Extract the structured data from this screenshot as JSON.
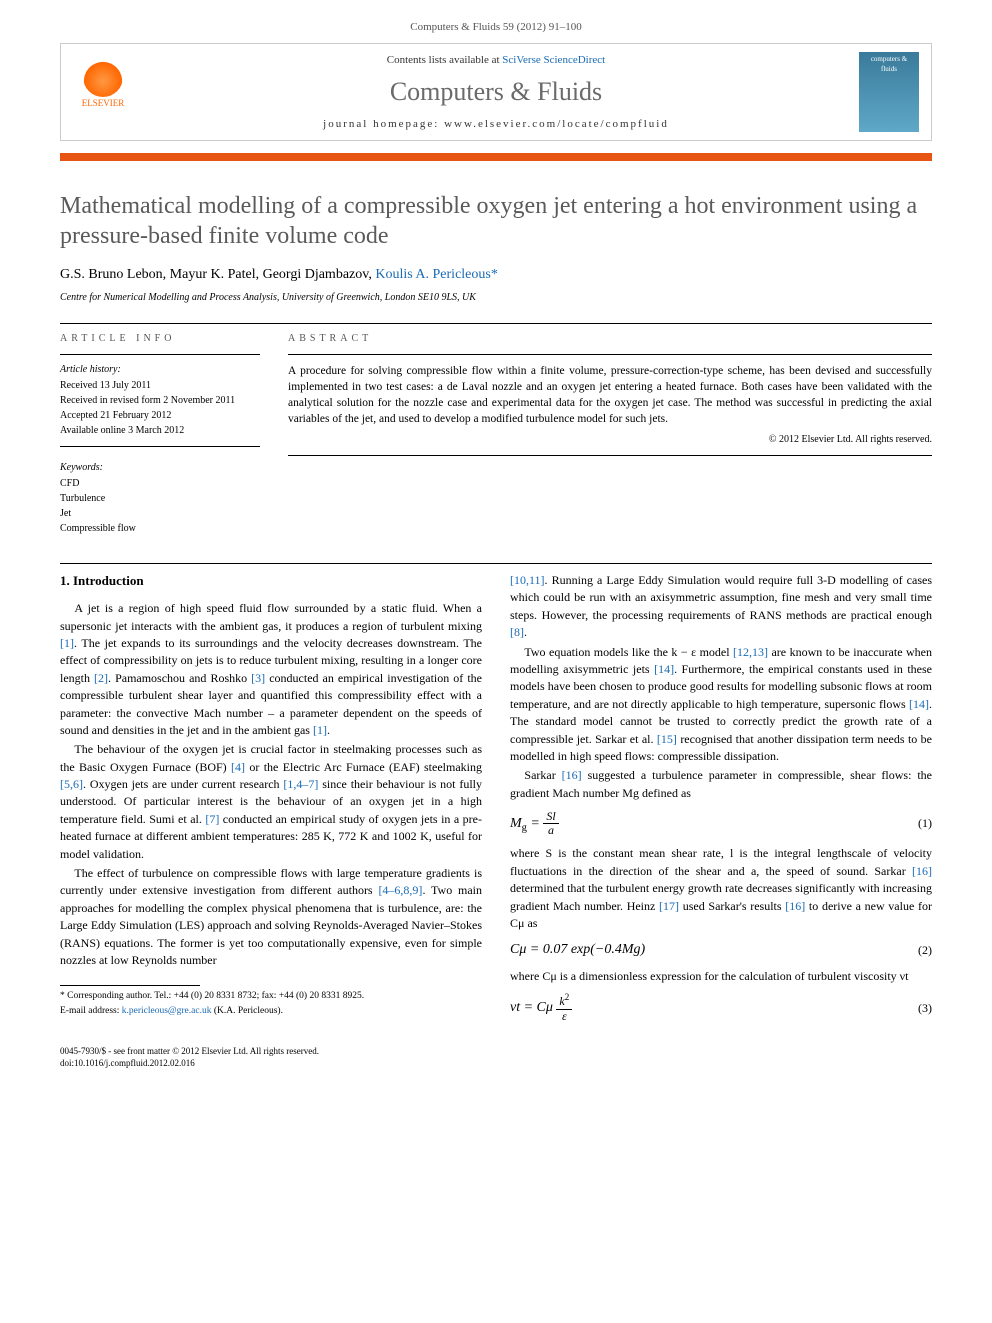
{
  "header": {
    "journal_ref": "Computers & Fluids 59 (2012) 91–100",
    "contents_prefix": "Contents lists available at ",
    "contents_link": "SciVerse ScienceDirect",
    "journal_title": "Computers & Fluids",
    "homepage": "journal homepage: www.elsevier.com/locate/compfluid",
    "publisher": "ELSEVIER",
    "cover_text": "computers & fluids"
  },
  "article": {
    "title": "Mathematical modelling of a compressible oxygen jet entering a hot environment using a pressure-based finite volume code",
    "authors_plain": "G.S. Bruno Lebon, Mayur K. Patel, Georgi Djambazov, ",
    "author_corr": "Koulis A. Pericleous",
    "corr_marker": "*",
    "affiliation": "Centre for Numerical Modelling and Process Analysis, University of Greenwich, London SE10 9LS, UK"
  },
  "labels": {
    "article_info": "ARTICLE INFO",
    "abstract": "ABSTRACT",
    "history": "Article history:",
    "keywords": "Keywords:"
  },
  "history": {
    "received": "Received 13 July 2011",
    "revised": "Received in revised form 2 November 2011",
    "accepted": "Accepted 21 February 2012",
    "online": "Available online 3 March 2012"
  },
  "keywords": [
    "CFD",
    "Turbulence",
    "Jet",
    "Compressible flow"
  ],
  "abstract": {
    "text": "A procedure for solving compressible flow within a finite volume, pressure-correction-type scheme, has been devised and successfully implemented in two test cases: a de Laval nozzle and an oxygen jet entering a heated furnace. Both cases have been validated with the analytical solution for the nozzle case and experimental data for the oxygen jet case. The method was successful in predicting the axial variables of the jet, and used to develop a modified turbulence model for such jets.",
    "copyright": "© 2012 Elsevier Ltd. All rights reserved."
  },
  "sections": {
    "intro_heading": "1. Introduction"
  },
  "body": {
    "left": [
      "A jet is a region of high speed fluid flow surrounded by a static fluid. When a supersonic jet interacts with the ambient gas, it produces a region of turbulent mixing [1]. The jet expands to its surroundings and the velocity decreases downstream. The effect of compressibility on jets is to reduce turbulent mixing, resulting in a longer core length [2]. Pamamoschou and Roshko [3] conducted an empirical investigation of the compressible turbulent shear layer and quantified this compressibility effect with a parameter: the convective Mach number – a parameter dependent on the speeds of sound and densities in the jet and in the ambient gas [1].",
      "The behaviour of the oxygen jet is crucial factor in steelmaking processes such as the Basic Oxygen Furnace (BOF) [4] or the Electric Arc Furnace (EAF) steelmaking [5,6]. Oxygen jets are under current research [1,4–7] since their behaviour is not fully understood. Of particular interest is the behaviour of an oxygen jet in a high temperature field. Sumi et al. [7] conducted an empirical study of oxygen jets in a pre-heated furnace at different ambient temperatures: 285 K, 772 K and 1002 K, useful for model validation.",
      "The effect of turbulence on compressible flows with large temperature gradients is currently under extensive investigation from different authors [4–6,8,9]. Two main approaches for modelling the complex physical phenomena that is turbulence, are: the Large Eddy Simulation (LES) approach and solving Reynolds-Averaged Navier–Stokes (RANS) equations. The former is yet too computationally expensive, even for simple nozzles at low Reynolds number"
    ],
    "right": [
      "[10,11]. Running a Large Eddy Simulation would require full 3-D modelling of cases which could be run with an axisymmetric assumption, fine mesh and very small time steps. However, the processing requirements of RANS methods are practical enough [8].",
      "Two equation models like the k − ε model [12,13] are known to be inaccurate when modelling axisymmetric jets [14]. Furthermore, the empirical constants used in these models have been chosen to produce good results for modelling subsonic flows at room temperature, and are not directly applicable to high temperature, supersonic flows [14]. The standard model cannot be trusted to correctly predict the growth rate of a compressible jet. Sarkar et al. [15] recognised that another dissipation term needs to be modelled in high speed flows: compressible dissipation.",
      "Sarkar [16] suggested a turbulence parameter in compressible, shear flows: the gradient Mach number Mg defined as"
    ],
    "eq1_lhs": "M",
    "eq1_sub": "g",
    "eq1_num": "Sl",
    "eq1_den": "a",
    "eq1_number": "(1)",
    "after_eq1": "where S is the constant mean shear rate, l is the integral lengthscale of velocity fluctuations in the direction of the shear and a, the speed of sound. Sarkar [16] determined that the turbulent energy growth rate decreases significantly with increasing gradient Mach number. Heinz [17] used Sarkar's results [16] to derive a new value for Cμ as",
    "eq2_text": "Cμ = 0.07 exp(−0.4Mg)",
    "eq2_number": "(2)",
    "after_eq2": "where Cμ is a dimensionless expression for the calculation of turbulent viscosity νt",
    "eq3_lhs": "νt = Cμ",
    "eq3_num": "k",
    "eq3_sup": "2",
    "eq3_den": "ε",
    "eq3_number": "(3)"
  },
  "footnote": {
    "corr": "* Corresponding author. Tel.: +44 (0) 20 8331 8732; fax: +44 (0) 20 8331 8925.",
    "email_label": "E-mail address: ",
    "email": "k.pericleous@gre.ac.uk",
    "email_suffix": " (K.A. Pericleous)."
  },
  "bottom": {
    "issn": "0045-7930/$ - see front matter © 2012 Elsevier Ltd. All rights reserved.",
    "doi": "doi:10.1016/j.compfluid.2012.02.016"
  },
  "colors": {
    "accent": "#e85412",
    "link": "#1a6bb5",
    "title_gray": "#5a5a5a"
  }
}
